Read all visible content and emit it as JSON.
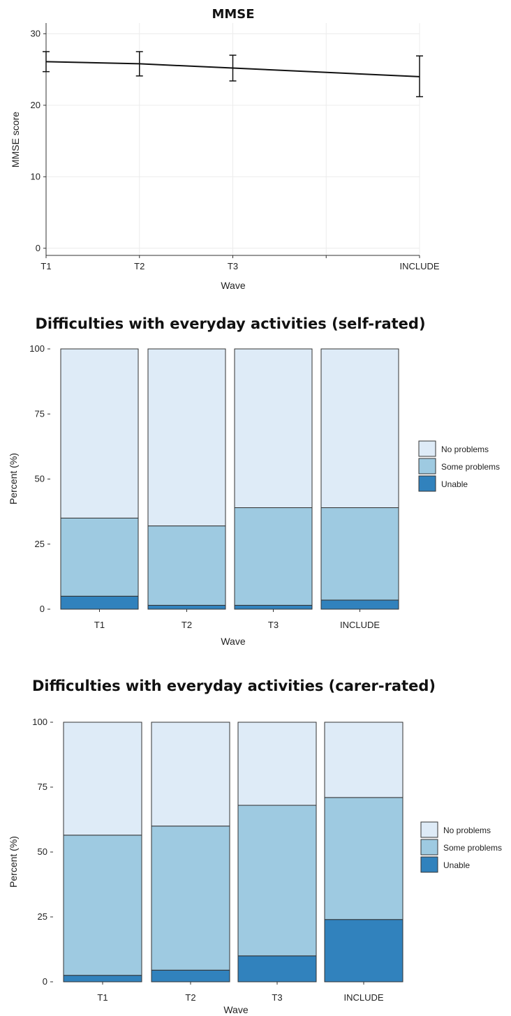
{
  "chart_data": [
    {
      "type": "line",
      "title": "MMSE",
      "xlabel": "Wave",
      "ylabel": "MMSE score",
      "categories": [
        "T1",
        "T2",
        "T3",
        "INCLUDE"
      ],
      "x_positions": [
        1,
        2,
        3,
        5
      ],
      "values": [
        26.1,
        25.8,
        25.2,
        24.0
      ],
      "error_bars": [
        {
          "low": 24.7,
          "high": 27.5
        },
        {
          "low": 24.1,
          "high": 27.5
        },
        {
          "low": 23.4,
          "high": 27.0
        },
        {
          "low": 21.2,
          "high": 26.9
        }
      ],
      "yticks": [
        0,
        10,
        20,
        30
      ],
      "ylim": [
        -1,
        31.5
      ],
      "grid": true,
      "line_color": "#111111"
    },
    {
      "type": "bar",
      "stacked": true,
      "title": "Difficulties with everyday activities (self-rated)",
      "xlabel": "Wave",
      "ylabel": "Percent (%)",
      "categories": [
        "T1",
        "T2",
        "T3",
        "INCLUDE"
      ],
      "series": [
        {
          "name": "Unable",
          "color": "#3182bd",
          "values": [
            5,
            1.5,
            1.5,
            3.5
          ]
        },
        {
          "name": "Some problems",
          "color": "#9ecae1",
          "values": [
            30,
            30.5,
            37.5,
            35.5
          ]
        },
        {
          "name": "No problems",
          "color": "#deebf7",
          "values": [
            65,
            68,
            61,
            61
          ]
        }
      ],
      "yticks": [
        0,
        25,
        50,
        75,
        100
      ],
      "ylim": [
        0,
        100
      ],
      "legend_title": "",
      "legend_position": "right"
    },
    {
      "type": "bar",
      "stacked": true,
      "title": "Difficulties with everyday activities (carer-rated)",
      "xlabel": "Wave",
      "ylabel": "Percent (%)",
      "categories": [
        "T1",
        "T2",
        "T3",
        "INCLUDE"
      ],
      "series": [
        {
          "name": "Unable",
          "color": "#3182bd",
          "values": [
            2.5,
            4.5,
            10,
            24
          ]
        },
        {
          "name": "Some problems",
          "color": "#9ecae1",
          "values": [
            54,
            55.5,
            58,
            47
          ]
        },
        {
          "name": "No problems",
          "color": "#deebf7",
          "values": [
            43.5,
            40,
            32,
            29
          ]
        }
      ],
      "yticks": [
        0,
        25,
        50,
        75,
        100
      ],
      "ylim": [
        0,
        100
      ],
      "legend_title": "",
      "legend_position": "right"
    }
  ]
}
